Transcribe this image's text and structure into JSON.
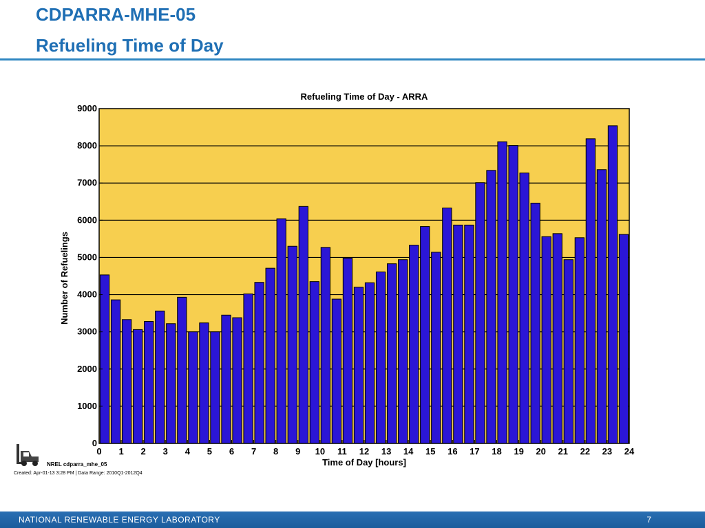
{
  "slide": {
    "title_line1": "CDPARRA-MHE-05",
    "title_line2": "Refueling Time of Day",
    "footer_text": "NATIONAL RENEWABLE ENERGY LABORATORY",
    "page_number": "7",
    "nrel_label": "NREL cdparra_mhe_05",
    "created_label": "Created: Apr-01-13  3:28 PM | Data Range: 2010Q1-2012Q4"
  },
  "colors": {
    "plot_background": "#f7cf4f",
    "bar_fill": "#2b16d6",
    "bar_stroke": "#000000",
    "title_color": "#1f6fb4",
    "footer_color": "#1f64a8"
  },
  "icons": [
    "forklift-icon"
  ],
  "chart_data": {
    "type": "bar",
    "title": "Refueling Time of Day - ARRA",
    "xlabel": "Time of Day [hours]",
    "ylabel": "Number of Refuelings",
    "xlim": [
      0,
      24
    ],
    "ylim": [
      0,
      9000
    ],
    "xticks": [
      0,
      1,
      2,
      3,
      4,
      5,
      6,
      7,
      8,
      9,
      10,
      11,
      12,
      13,
      14,
      15,
      16,
      17,
      18,
      19,
      20,
      21,
      22,
      23,
      24
    ],
    "yticks": [
      0,
      1000,
      2000,
      3000,
      4000,
      5000,
      6000,
      7000,
      8000,
      9000
    ],
    "bin_width": 0.5,
    "x": [
      0.25,
      0.75,
      1.25,
      1.75,
      2.25,
      2.75,
      3.25,
      3.75,
      4.25,
      4.75,
      5.25,
      5.75,
      6.25,
      6.75,
      7.25,
      7.75,
      8.25,
      8.75,
      9.25,
      9.75,
      10.25,
      10.75,
      11.25,
      11.75,
      12.25,
      12.75,
      13.25,
      13.75,
      14.25,
      14.75,
      15.25,
      15.75,
      16.25,
      16.75,
      17.25,
      17.75,
      18.25,
      18.75,
      19.25,
      19.75,
      20.25,
      20.75,
      21.25,
      21.75,
      22.25,
      22.75,
      23.25,
      23.75
    ],
    "values": [
      4530,
      3860,
      3330,
      3060,
      3280,
      3560,
      3220,
      3930,
      3000,
      3240,
      3000,
      3450,
      3380,
      4020,
      4330,
      4710,
      6040,
      5300,
      6370,
      4350,
      5270,
      3880,
      4980,
      4200,
      4320,
      4610,
      4830,
      4940,
      5330,
      5830,
      5140,
      6330,
      5870,
      5870,
      7010,
      7340,
      8110,
      8010,
      7270,
      6460,
      5560,
      5640,
      4940,
      5530,
      8190,
      7360,
      8540,
      5620
    ],
    "grid": true,
    "legend": "none"
  }
}
